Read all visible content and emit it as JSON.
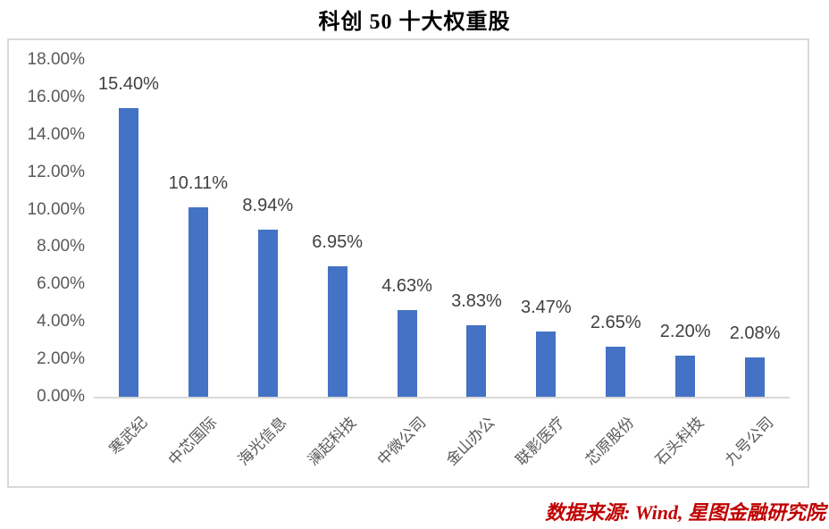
{
  "chart_data": {
    "type": "bar",
    "title": "科创 50 十大权重股",
    "categories": [
      "寒武纪",
      "中芯国际",
      "海光信息",
      "澜起科技",
      "中微公司",
      "金山办公",
      "联影医疗",
      "芯原股份",
      "石头科技",
      "九号公司"
    ],
    "values": [
      15.4,
      10.11,
      8.94,
      6.95,
      4.63,
      3.83,
      3.47,
      2.65,
      2.2,
      2.08
    ],
    "data_labels": [
      "15.40%",
      "10.11%",
      "8.94%",
      "6.95%",
      "4.63%",
      "3.83%",
      "3.47%",
      "2.65%",
      "2.20%",
      "2.08%"
    ],
    "xlabel": "",
    "ylabel": "",
    "ylim": [
      0,
      18
    ],
    "ytick_step": 2,
    "ytick_labels": [
      "0.00%",
      "2.00%",
      "4.00%",
      "6.00%",
      "8.00%",
      "10.00%",
      "12.00%",
      "14.00%",
      "16.00%",
      "18.00%"
    ],
    "bar_color": "#4472C4",
    "axis_line_color": "#d9d9d9",
    "grid": false,
    "legend": "none",
    "source_note": "数据来源: Wind, 星图金融研究院"
  }
}
